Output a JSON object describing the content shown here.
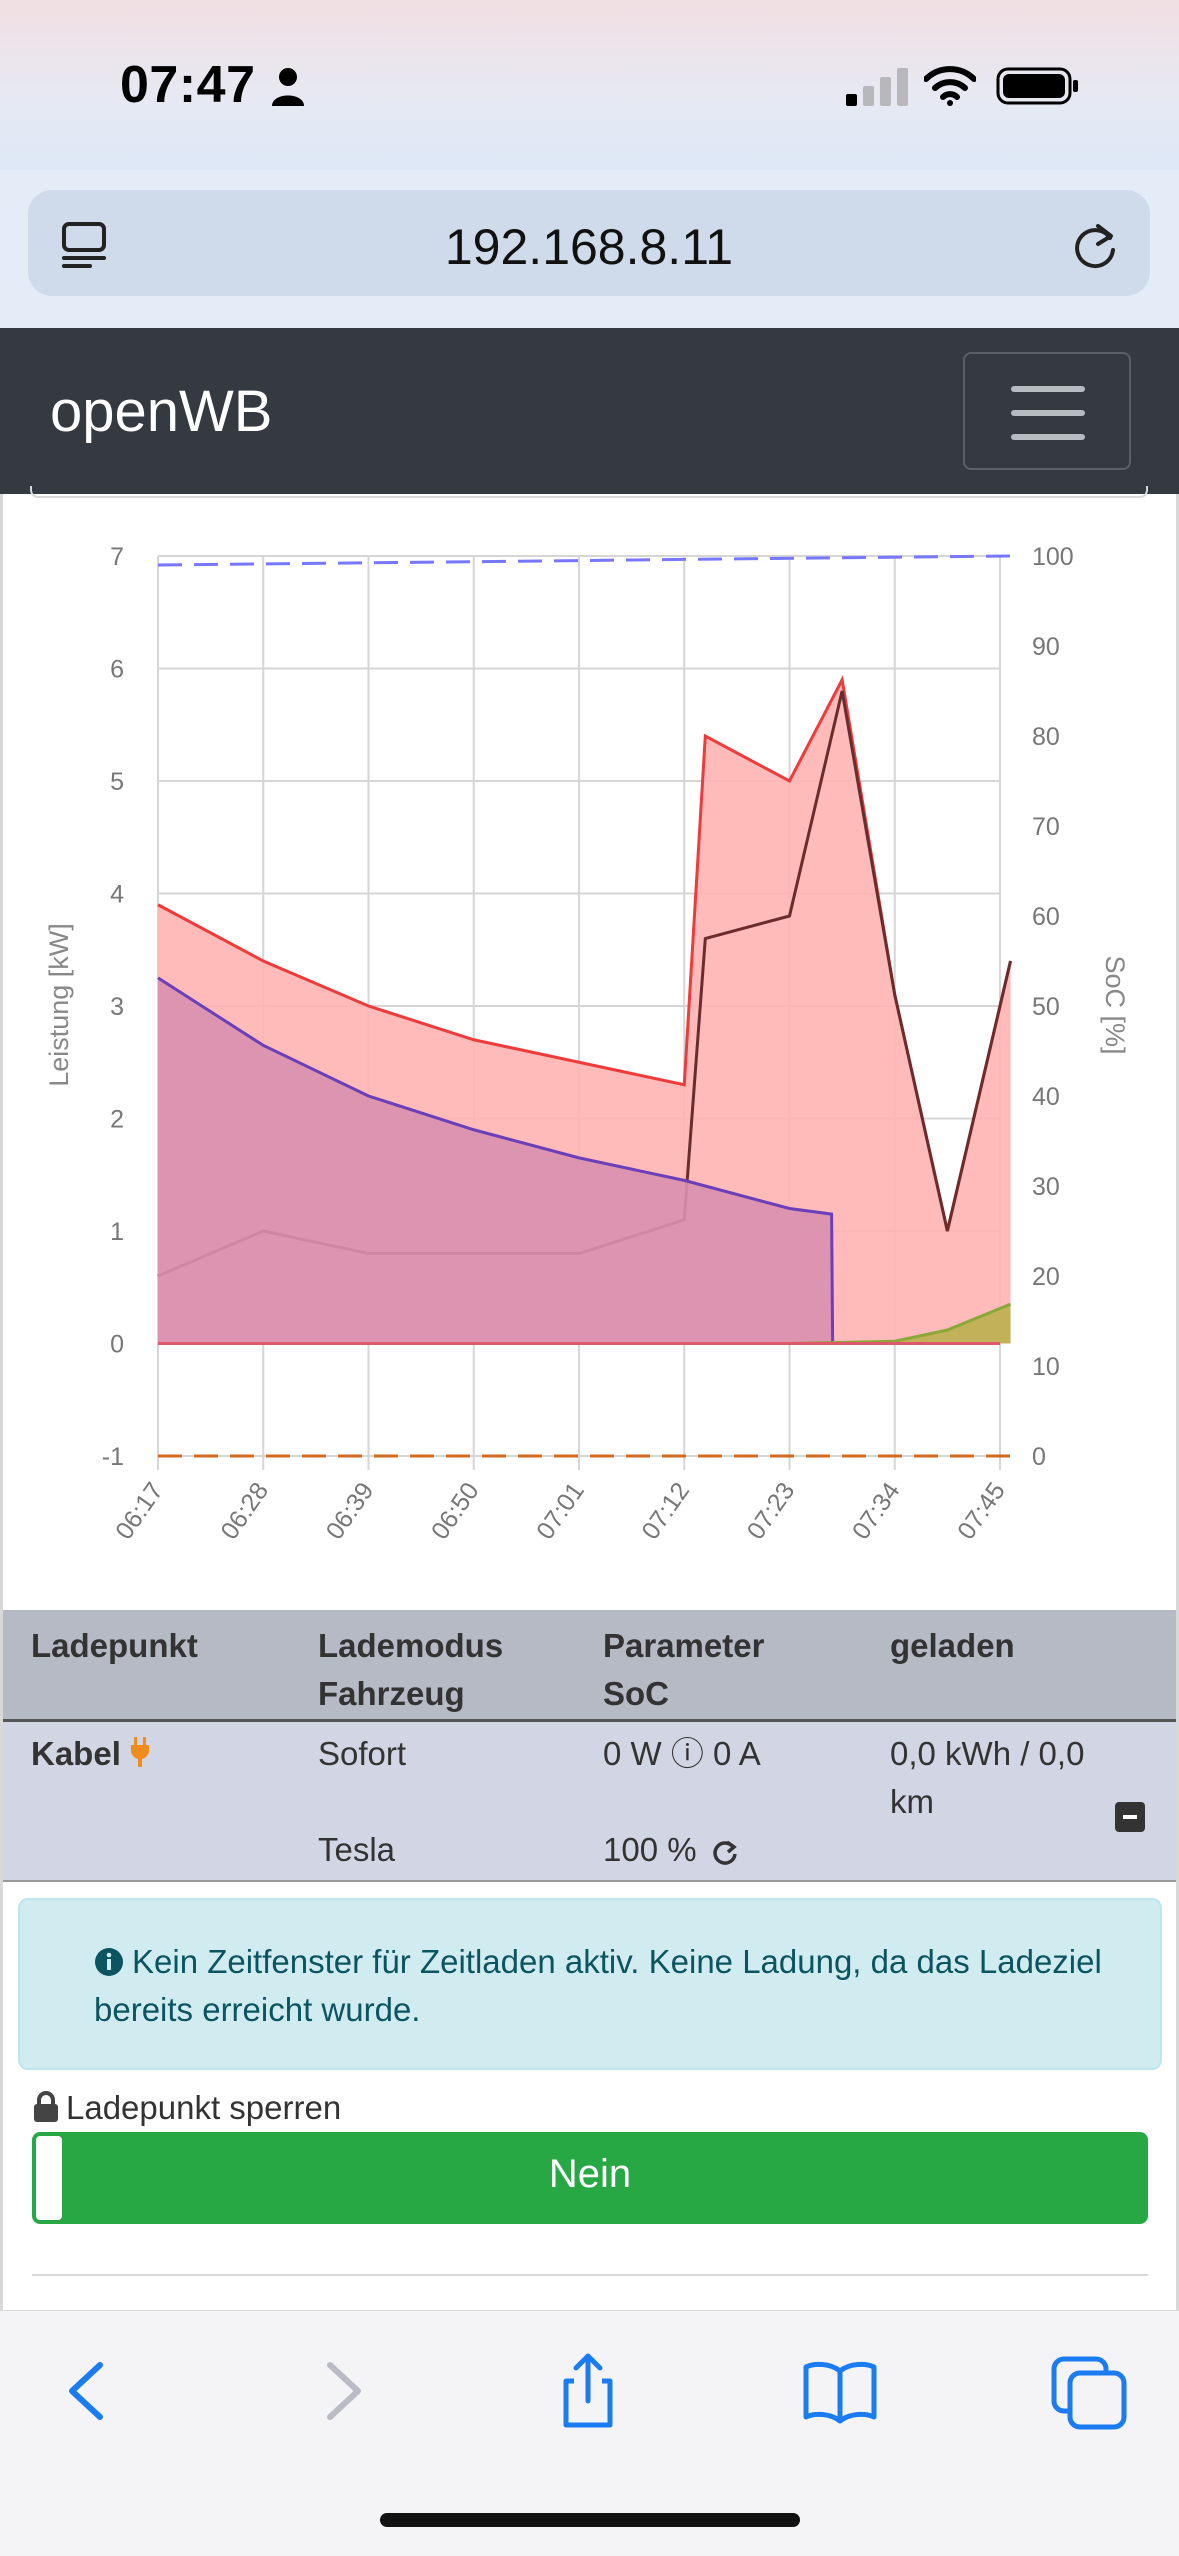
{
  "status_bar": {
    "time": "07:47"
  },
  "browser": {
    "url": "192.168.8.11"
  },
  "app": {
    "brand": "openWB"
  },
  "chart_data": {
    "type": "area",
    "y_left_label": "Leistung [kW]",
    "y_right_label": "SoC [%]",
    "y_left_ticks": [
      "7",
      "6",
      "5",
      "4",
      "3",
      "2",
      "1",
      "0",
      "-1"
    ],
    "y_right_ticks": [
      "100",
      "90",
      "80",
      "70",
      "60",
      "50",
      "40",
      "30",
      "20",
      "10",
      "0"
    ],
    "x_ticks": [
      "06:17",
      "06:28",
      "06:39",
      "06:50",
      "07:01",
      "07:12",
      "07:23",
      "07:34",
      "07:45"
    ],
    "ylim_left": [
      -1,
      7
    ],
    "ylim_right": [
      0,
      100
    ],
    "grid": true,
    "series": [
      {
        "color": "#ee3b3b",
        "fill": "#ffb3b3",
        "x": [
          0,
          1,
          2,
          3,
          4,
          5,
          5.2,
          6,
          6.5,
          7,
          7.5,
          8.1
        ],
        "y": [
          3.9,
          3.4,
          3.0,
          2.7,
          2.5,
          2.3,
          5.4,
          5.0,
          5.9,
          3.1,
          1.0,
          3.4
        ]
      },
      {
        "color": "#6a2c2c",
        "x": [
          0,
          1,
          2,
          3,
          4,
          5,
          5.2,
          6,
          6.5,
          7,
          7.5,
          8.1
        ],
        "y": [
          0.6,
          1.0,
          0.8,
          0.8,
          0.8,
          1.1,
          3.6,
          3.8,
          5.8,
          3.1,
          1.0,
          3.4
        ]
      },
      {
        "color": "#6b3fb8",
        "fill": "#d890b0",
        "x": [
          0,
          1,
          2,
          3,
          4,
          5,
          6,
          6.4,
          6.41
        ],
        "y": [
          3.25,
          2.65,
          2.2,
          1.9,
          1.65,
          1.45,
          1.2,
          1.15,
          0
        ]
      },
      {
        "color": "#8aa83a",
        "fill": "#bcb050",
        "x": [
          6,
          7,
          7.5,
          8.1
        ],
        "y": [
          0,
          0.02,
          0.12,
          0.35
        ]
      },
      {
        "color": "#7777ff",
        "dashed": true,
        "x": [
          0,
          8.1
        ],
        "y": [
          99,
          100
        ]
      },
      {
        "color": "#d2691e",
        "dashed": true,
        "x": [
          0,
          8.1
        ],
        "y": [
          -1,
          -1
        ]
      }
    ]
  },
  "table": {
    "headers": [
      [
        "Ladepunkt",
        ""
      ],
      [
        "Lademodus",
        "Fahrzeug"
      ],
      [
        "Parameter",
        "SoC"
      ],
      [
        "geladen",
        ""
      ]
    ],
    "row": {
      "ladepunkt": "Kabel",
      "lademodus": "Sofort",
      "parameter": "0 W ⓘ 0 A",
      "geladen_1": "0,0 kWh / 0,0",
      "geladen_2": "km",
      "fahrzeug": "Tesla",
      "soc": "100 %"
    }
  },
  "alert": {
    "text": "Kein Zeitfenster für Zeitladen aktiv. Keine Ladung, da das Ladeziel bereits erreicht wurde."
  },
  "lock": {
    "label": "Ladepunkt sperren",
    "toggle_label": "Nein"
  },
  "colors": {
    "navbar": "#343a40",
    "success": "#28a745",
    "info_bg": "#d1ecf1",
    "accent_orange": "#f08c1e"
  }
}
